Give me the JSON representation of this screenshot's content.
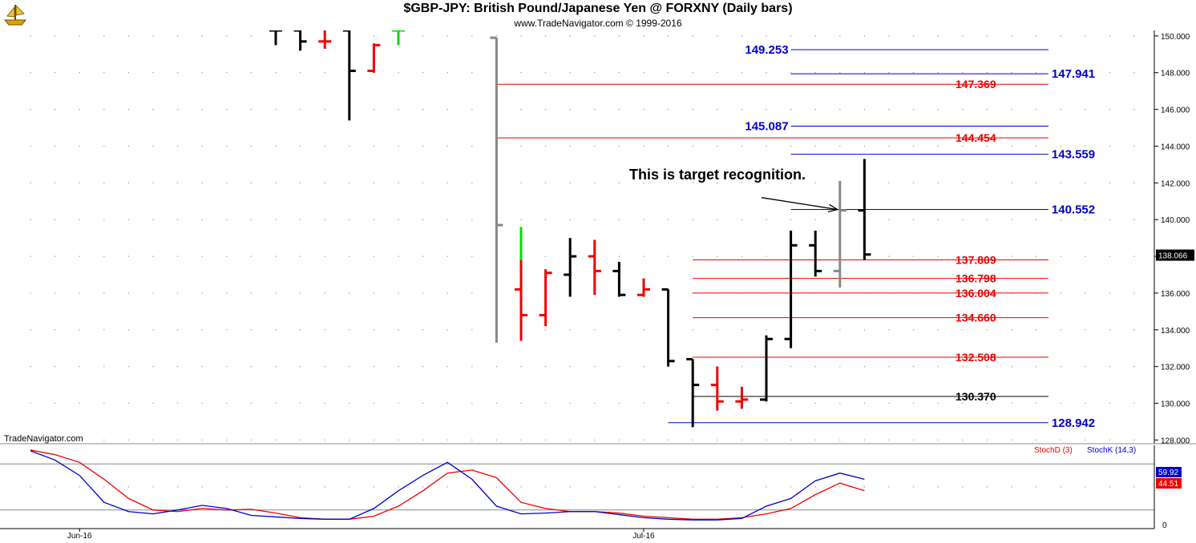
{
  "header": {
    "title": "$GBP-JPY:  British Pound/Japanese Yen @ FORXNY  (Daily bars)",
    "subtitle": "www.TradeNavigator.com © 1999-2016",
    "logo_icon": "trade-navigator-ship-icon"
  },
  "watermark": "TradeNavigator.com",
  "colors": {
    "up_bar": "#000000",
    "down_bar": "#ee0000",
    "green_bar": "#00dd00",
    "gap_bar": "#888888",
    "red_level": "#dd0000",
    "blue_level": "#0000cc",
    "black_level": "#000000",
    "stoch_d": "#dd0000",
    "stoch_k": "#0000cc",
    "last_price_box": "#000000"
  },
  "chart_data": [
    {
      "type": "ohlc",
      "title": "$GBP-JPY:  British Pound/Japanese Yen @ FORXNY  (Daily bars)",
      "ylim": [
        127.8,
        150.3
      ],
      "y_ticks": [
        "150.000",
        "148.000",
        "146.000",
        "144.000",
        "142.000",
        "140.000",
        "138.000",
        "136.000",
        "134.000",
        "132.000",
        "130.000",
        "128.000"
      ],
      "x_labels": [
        {
          "text": "Jun-16",
          "index": 2
        },
        {
          "text": "Jul-16",
          "index": 25
        }
      ],
      "last_price_label": "138.066",
      "bars": [
        {
          "i": 10,
          "o": 150.3,
          "h": 150.3,
          "l": 149.5,
          "c": 150.3,
          "color": "black"
        },
        {
          "i": 11,
          "o": 150.3,
          "h": 150.3,
          "l": 149.2,
          "c": 149.7,
          "color": "black"
        },
        {
          "i": 12,
          "o": 149.7,
          "h": 150.3,
          "l": 149.3,
          "c": 149.7,
          "color": "red"
        },
        {
          "i": 13,
          "o": 150.3,
          "h": 150.3,
          "l": 145.4,
          "c": 148.1,
          "color": "black"
        },
        {
          "i": 14,
          "o": 148.1,
          "h": 149.6,
          "l": 148.0,
          "c": 149.5,
          "color": "red"
        },
        {
          "i": 15,
          "o": 150.3,
          "h": 150.3,
          "l": 149.5,
          "c": 150.3,
          "color": "green"
        },
        {
          "i": 19,
          "o": 149.9,
          "h": 149.9,
          "l": 133.3,
          "c": 139.7,
          "color": "gray"
        },
        {
          "i": 20,
          "o": 136.2,
          "h": 139.6,
          "l": 133.4,
          "c": 134.8,
          "color": "red",
          "top_color": "green",
          "split": 137.8
        },
        {
          "i": 21,
          "o": 134.8,
          "h": 137.3,
          "l": 134.2,
          "c": 137.1,
          "color": "red"
        },
        {
          "i": 22,
          "o": 137.0,
          "h": 139.0,
          "l": 135.8,
          "c": 138.0,
          "color": "black"
        },
        {
          "i": 23,
          "o": 138.0,
          "h": 138.9,
          "l": 135.9,
          "c": 137.2,
          "color": "red"
        },
        {
          "i": 24,
          "o": 137.2,
          "h": 137.7,
          "l": 135.8,
          "c": 135.9,
          "color": "black"
        },
        {
          "i": 25,
          "o": 135.9,
          "h": 136.8,
          "l": 135.8,
          "c": 136.2,
          "color": "red"
        },
        {
          "i": 26,
          "o": 136.2,
          "h": 136.2,
          "l": 132.0,
          "c": 132.3,
          "color": "black"
        },
        {
          "i": 27,
          "o": 132.4,
          "h": 132.4,
          "l": 128.7,
          "c": 131.0,
          "color": "black"
        },
        {
          "i": 28,
          "o": 131.0,
          "h": 132.0,
          "l": 129.6,
          "c": 130.1,
          "color": "red"
        },
        {
          "i": 29,
          "o": 130.1,
          "h": 130.9,
          "l": 129.7,
          "c": 130.2,
          "color": "red"
        },
        {
          "i": 30,
          "o": 130.2,
          "h": 133.7,
          "l": 130.1,
          "c": 133.5,
          "color": "black"
        },
        {
          "i": 31,
          "o": 133.5,
          "h": 139.4,
          "l": 133.0,
          "c": 138.6,
          "color": "black"
        },
        {
          "i": 32,
          "o": 138.6,
          "h": 139.4,
          "l": 136.9,
          "c": 137.2,
          "color": "black"
        },
        {
          "i": 33,
          "o": 137.2,
          "h": 142.1,
          "l": 136.3,
          "c": 140.5,
          "color": "gray"
        },
        {
          "i": 34,
          "o": 140.5,
          "h": 143.3,
          "l": 137.8,
          "c": 138.1,
          "color": "black"
        }
      ],
      "levels": [
        {
          "value": 149.253,
          "label": "149.253",
          "color": "blue",
          "x_from": 31,
          "x_to": 41.5,
          "label_side": "left"
        },
        {
          "value": 147.941,
          "label": "147.941",
          "color": "blue",
          "x_from": 31,
          "x_to": 41.5,
          "label_side": "right"
        },
        {
          "value": 147.369,
          "label": "147.369",
          "color": "red",
          "x_from": 19,
          "x_to": 41.5,
          "label_side": "mid"
        },
        {
          "value": 145.087,
          "label": "145.087",
          "color": "blue",
          "x_from": 31,
          "x_to": 41.5,
          "label_side": "left"
        },
        {
          "value": 144.454,
          "label": "144.454",
          "color": "red",
          "x_from": 19,
          "x_to": 41.5,
          "label_side": "mid"
        },
        {
          "value": 143.559,
          "label": "143.559",
          "color": "blue",
          "x_from": 31,
          "x_to": 41.5,
          "label_side": "right"
        },
        {
          "value": 140.552,
          "label": "140.552",
          "color": "blue",
          "x_from": 31,
          "x_to": 41.5,
          "label_side": "right"
        },
        {
          "value": 137.809,
          "label": "137.809",
          "color": "red",
          "x_from": 27,
          "x_to": 41.5,
          "label_side": "mid"
        },
        {
          "value": 136.798,
          "label": "136.798",
          "color": "red",
          "x_from": 27,
          "x_to": 41.5,
          "label_side": "mid"
        },
        {
          "value": 136.004,
          "label": "136.004",
          "color": "red",
          "x_from": 27,
          "x_to": 41.5,
          "label_side": "mid"
        },
        {
          "value": 134.66,
          "label": "134.660",
          "color": "red",
          "x_from": 27,
          "x_to": 41.5,
          "label_side": "mid"
        },
        {
          "value": 132.508,
          "label": "132.508",
          "color": "red",
          "x_from": 27,
          "x_to": 41.5,
          "label_side": "mid"
        },
        {
          "value": 130.37,
          "label": "130.370",
          "color": "black",
          "x_from": 27,
          "x_to": 41.5,
          "label_side": "mid"
        },
        {
          "value": 128.942,
          "label": "128.942",
          "color": "blue",
          "x_from": 26,
          "x_to": 41.5,
          "label_side": "right"
        }
      ],
      "annotation": {
        "text": "This is target recognition.",
        "arrow_from": {
          "i": 29.8,
          "v": 141.2
        },
        "arrow_to": {
          "i": 32.9,
          "v": 140.55
        }
      }
    },
    {
      "type": "line",
      "title": "Stochastic",
      "ylim": [
        0,
        100
      ],
      "y_ticks": [
        "0"
      ],
      "reference_lines": [
        80,
        20
      ],
      "x": [
        0,
        1,
        2,
        3,
        4,
        5,
        6,
        7,
        8,
        9,
        10,
        11,
        12,
        13,
        14,
        15,
        16,
        17,
        18,
        19,
        20,
        21,
        22,
        23,
        24,
        25,
        26,
        27,
        28,
        29,
        30,
        31,
        32,
        33,
        34
      ],
      "series": [
        {
          "name": "StochD (3)",
          "color": "red",
          "last_label": "44.51",
          "values": [
            98,
            92,
            82,
            60,
            35,
            20,
            18,
            22,
            20,
            21,
            16,
            10,
            8,
            8,
            12,
            25,
            45,
            68,
            72,
            62,
            30,
            22,
            18,
            18,
            16,
            12,
            10,
            8,
            8,
            10,
            15,
            22,
            40,
            55,
            45
          ]
        },
        {
          "name": "StochK (14,3)",
          "color": "blue",
          "last_label": "59.92",
          "values": [
            97,
            85,
            65,
            30,
            18,
            15,
            20,
            26,
            22,
            13,
            11,
            9,
            8,
            8,
            22,
            45,
            65,
            82,
            60,
            25,
            15,
            16,
            18,
            18,
            14,
            10,
            8,
            7,
            7,
            9,
            25,
            35,
            58,
            68,
            60
          ]
        }
      ]
    }
  ]
}
